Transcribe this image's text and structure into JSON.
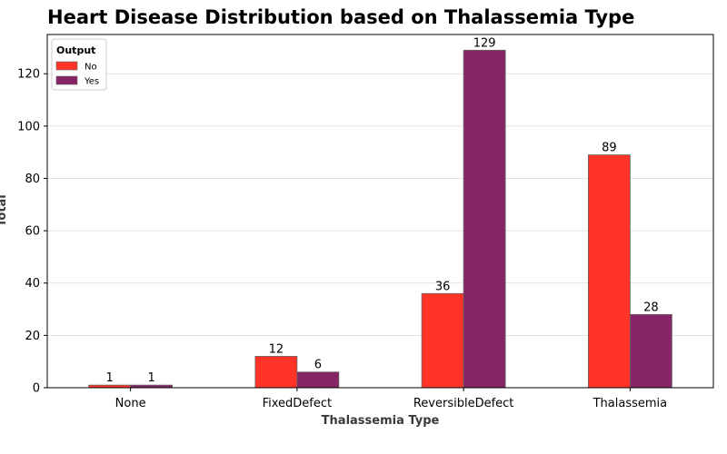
{
  "chart_data": {
    "type": "bar",
    "title": "Heart Disease Distribution based on Thalassemia Type",
    "xlabel": "Thalassemia Type",
    "ylabel": "Total",
    "categories": [
      "None",
      "FixedDefect",
      "ReversibleDefect",
      "Thalassemia"
    ],
    "series": [
      {
        "name": "No",
        "values": [
          1,
          12,
          36,
          89
        ],
        "color": "#ff3427"
      },
      {
        "name": "Yes",
        "values": [
          1,
          6,
          129,
          28
        ],
        "color": "#852565"
      }
    ],
    "ylim": [
      0,
      135
    ],
    "yticks": [
      0,
      20,
      40,
      60,
      80,
      100,
      120
    ],
    "grid": "horizontal",
    "legend": {
      "title": "Output",
      "placement": "top-left"
    },
    "bar_edge_color": "#666666"
  }
}
